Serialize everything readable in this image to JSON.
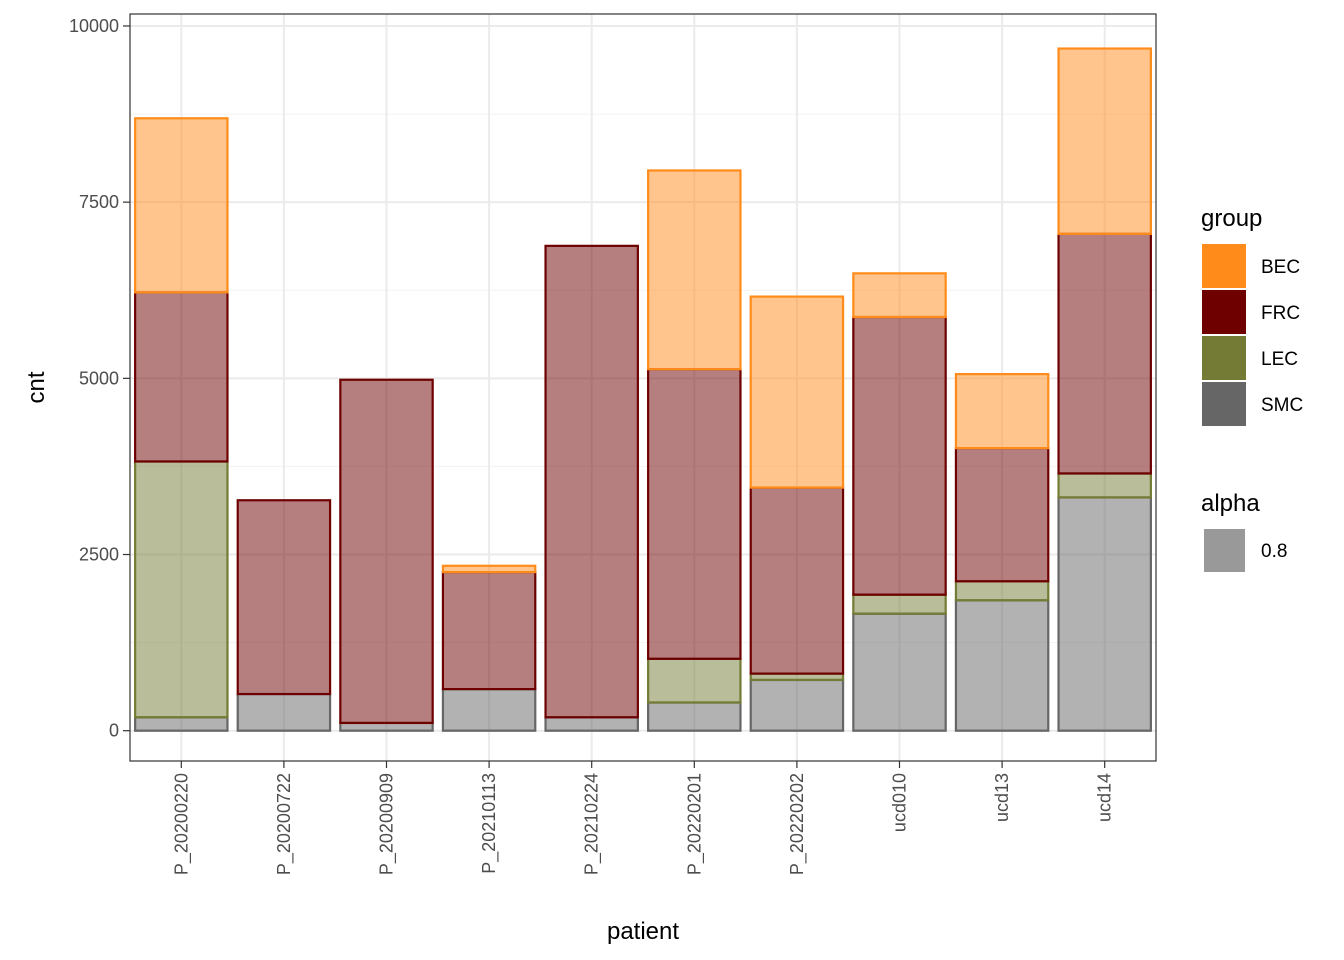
{
  "chart_data": {
    "type": "bar",
    "stacked": true,
    "xlabel": "patient",
    "ylabel": "cnt",
    "ylim": [
      -430,
      10170
    ],
    "yticks": [
      0,
      2500,
      5000,
      7500,
      10000
    ],
    "ytick_labels": [
      "0",
      "2500",
      "5000",
      "7500",
      "10000"
    ],
    "grid": true,
    "categories": [
      "P_20200220",
      "P_20200722",
      "P_20200909",
      "P_20210113",
      "P_20210224",
      "P_20220201",
      "P_20220202",
      "ucd010",
      "ucd13",
      "ucd14"
    ],
    "series": [
      {
        "name": "SMC",
        "values": [
          190,
          520,
          110,
          590,
          190,
          400,
          720,
          1660,
          1850,
          3310
        ]
      },
      {
        "name": "LEC",
        "values": [
          3630,
          0,
          0,
          0,
          0,
          620,
          90,
          270,
          270,
          340
        ]
      },
      {
        "name": "FRC",
        "values": [
          2400,
          2750,
          4870,
          1660,
          6690,
          4110,
          2640,
          3940,
          1890,
          3400
        ]
      },
      {
        "name": "BEC",
        "values": [
          2470,
          0,
          0,
          90,
          0,
          2820,
          2710,
          620,
          1050,
          2630
        ]
      }
    ],
    "stack_order_bottom_to_top": [
      "SMC",
      "LEC",
      "FRC",
      "BEC"
    ],
    "legend": {
      "position": "right",
      "group_title": "group",
      "entries": [
        "BEC",
        "FRC",
        "LEC",
        "SMC"
      ],
      "alpha_title": "alpha",
      "alpha_entries": [
        "0.8"
      ]
    }
  },
  "colors": {
    "BEC": "#FF8C1A",
    "FRC": "#6E0000",
    "LEC": "#737B35",
    "SMC": "#666666",
    "alpha_swatch": "#999999",
    "grid_major": "#EBEBEB",
    "grid_minor": "#F2F2F2",
    "panel_border": "#333333",
    "tick_text": "#4D4D4D"
  },
  "fill_opacity": 0.5
}
